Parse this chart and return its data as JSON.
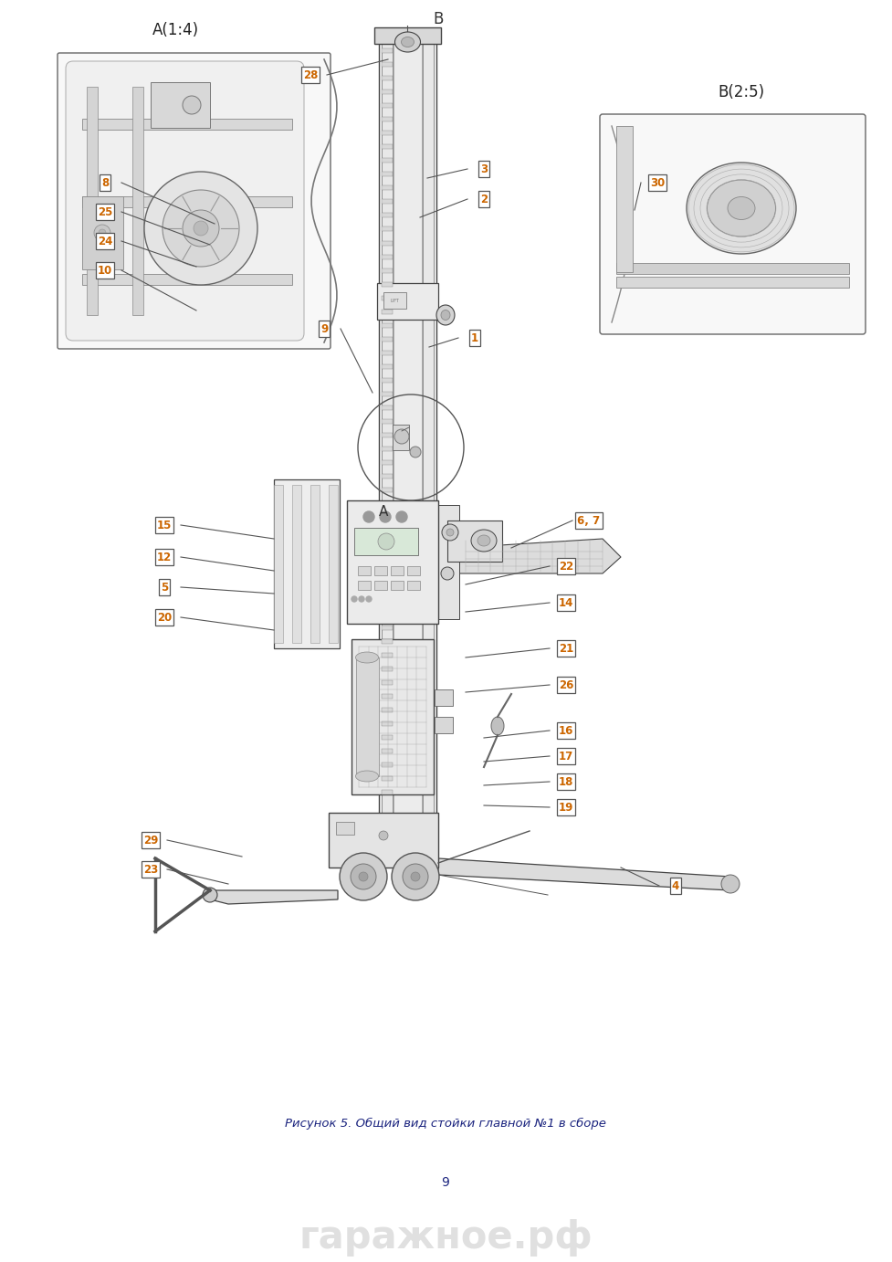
{
  "fig_width": 9.77,
  "fig_height": 13.82,
  "dpi": 100,
  "bg_color": "#ffffff",
  "caption": "Рисунок 5. Общий вид стойки главной №1 в сборе",
  "page_number": "9",
  "watermark": "гаражное.рф",
  "caption_color": "#1a237e",
  "caption_fontsize": 9.5,
  "watermark_color": "#d0d0d0",
  "watermark_fontsize": 30,
  "page_num_color": "#1a237e",
  "page_num_fontsize": 10,
  "label_box_color": "#ffffff",
  "label_border_color": "#555555",
  "label_text_color": "#cc6600",
  "label_fontsize": 8.5,
  "section_label_A": "A(1:4)",
  "section_label_B": "B(2:5)",
  "line_color": "#555555",
  "machine_edge": "#444444",
  "machine_fill": "#f0f0f0",
  "machine_fill2": "#e0e0e0",
  "machine_fill3": "#d8d8d8"
}
